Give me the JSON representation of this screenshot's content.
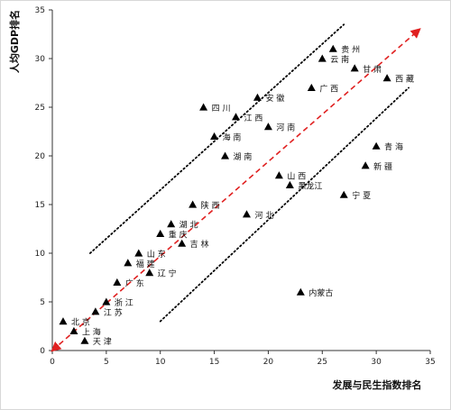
{
  "chart_data": {
    "type": "scatter",
    "title": "",
    "xlabel": "发展与民生指数排名",
    "ylabel": "人均GDP排名",
    "xlim": [
      0,
      35
    ],
    "ylim": [
      0,
      35
    ],
    "xticks": [
      0,
      5,
      10,
      15,
      20,
      25,
      30,
      35
    ],
    "yticks": [
      0,
      5,
      10,
      15,
      20,
      25,
      30,
      35
    ],
    "grid": false,
    "marker": "triangle",
    "colors": {
      "marker": "#000000",
      "diagonal": "#e02020",
      "band": "#000000"
    },
    "reference_lines": [
      {
        "style": "dashed",
        "color": "#e02020",
        "arrow": true,
        "from": [
          0,
          0
        ],
        "to": [
          34,
          33
        ]
      },
      {
        "style": "dotted",
        "color": "#000000",
        "from": [
          3.5,
          10
        ],
        "to": [
          27,
          33.5
        ]
      },
      {
        "style": "dotted",
        "color": "#000000",
        "from": [
          10,
          3
        ],
        "to": [
          33,
          27
        ]
      }
    ],
    "points": [
      {
        "label": "北 京",
        "x": 1,
        "y": 3
      },
      {
        "label": "上 海",
        "x": 2,
        "y": 2
      },
      {
        "label": "天 津",
        "x": 3,
        "y": 1
      },
      {
        "label": "江 苏",
        "x": 4,
        "y": 4
      },
      {
        "label": "浙 江",
        "x": 5,
        "y": 5
      },
      {
        "label": "广 东",
        "x": 6,
        "y": 7
      },
      {
        "label": "福 建",
        "x": 7,
        "y": 9
      },
      {
        "label": "山 东",
        "x": 8,
        "y": 10
      },
      {
        "label": "辽 宁",
        "x": 9,
        "y": 8
      },
      {
        "label": "重 庆",
        "x": 10,
        "y": 12
      },
      {
        "label": "湖 北",
        "x": 11,
        "y": 13
      },
      {
        "label": "吉 林",
        "x": 12,
        "y": 11
      },
      {
        "label": "陕 西",
        "x": 13,
        "y": 15
      },
      {
        "label": "四 川",
        "x": 14,
        "y": 25
      },
      {
        "label": "海 南",
        "x": 15,
        "y": 22
      },
      {
        "label": "湖 南",
        "x": 16,
        "y": 20
      },
      {
        "label": "江 西",
        "x": 17,
        "y": 24
      },
      {
        "label": "河 北",
        "x": 18,
        "y": 14
      },
      {
        "label": "安 徽",
        "x": 19,
        "y": 26
      },
      {
        "label": "河 南",
        "x": 20,
        "y": 23
      },
      {
        "label": "山 西",
        "x": 21,
        "y": 18
      },
      {
        "label": "黑龙江",
        "x": 22,
        "y": 17
      },
      {
        "label": "内蒙古",
        "x": 23,
        "y": 6
      },
      {
        "label": "广 西",
        "x": 24,
        "y": 27
      },
      {
        "label": "云 南",
        "x": 25,
        "y": 30
      },
      {
        "label": "贵 州",
        "x": 26,
        "y": 31
      },
      {
        "label": "宁 夏",
        "x": 27,
        "y": 16
      },
      {
        "label": "甘 肃",
        "x": 28,
        "y": 29
      },
      {
        "label": "新 疆",
        "x": 29,
        "y": 19
      },
      {
        "label": "青 海",
        "x": 30,
        "y": 21
      },
      {
        "label": "西 藏",
        "x": 31,
        "y": 28
      }
    ]
  }
}
